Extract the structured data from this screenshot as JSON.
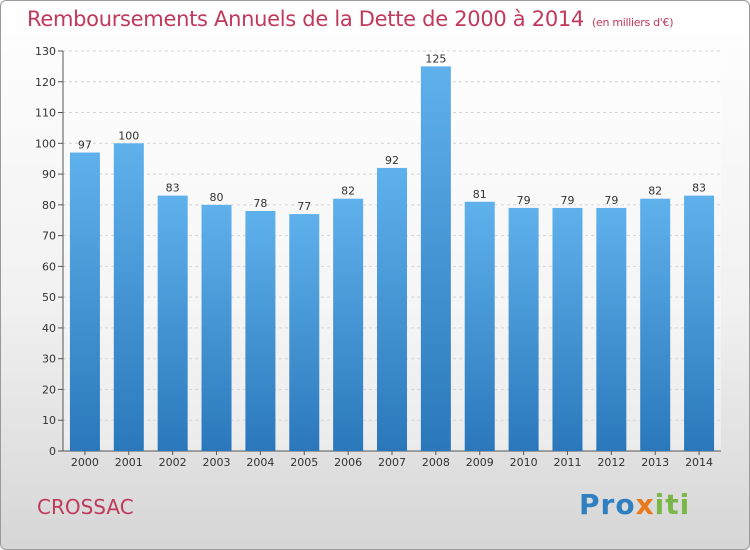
{
  "header": {
    "title": "Remboursements Annuels de la Dette de 2000 à 2014",
    "subtitle": "(en milliers d'€)"
  },
  "footer": {
    "town": "CROSSAC",
    "logo": "Proxiti"
  },
  "colors": {
    "title": "#c0395b",
    "bar_top": "#5fb1ec",
    "bar_bottom": "#2a78bb",
    "grid": "#d6d6d6"
  },
  "chart_data": {
    "type": "bar",
    "title": "Remboursements Annuels de la Dette de 2000 à 2014",
    "xlabel": "",
    "ylabel": "",
    "categories": [
      "2000",
      "2001",
      "2002",
      "2003",
      "2004",
      "2005",
      "2006",
      "2007",
      "2008",
      "2009",
      "2010",
      "2011",
      "2012",
      "2013",
      "2014"
    ],
    "values": [
      97,
      100,
      83,
      80,
      78,
      77,
      82,
      92,
      125,
      81,
      79,
      79,
      79,
      82,
      83
    ],
    "ylim": [
      0,
      130
    ],
    "ytick_step": 10,
    "grid": true,
    "grid_style": "dashed",
    "legend": "none",
    "data_labels": true
  }
}
